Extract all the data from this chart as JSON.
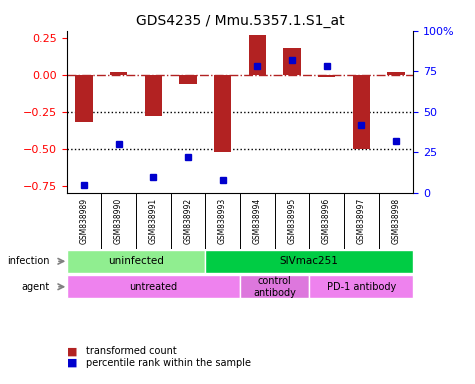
{
  "title": "GDS4235 / Mmu.5357.1.S1_at",
  "samples": [
    "GSM838989",
    "GSM838990",
    "GSM838991",
    "GSM838992",
    "GSM838993",
    "GSM838994",
    "GSM838995",
    "GSM838996",
    "GSM838997",
    "GSM838998"
  ],
  "transformed_count": [
    -0.32,
    0.02,
    -0.28,
    -0.06,
    -0.52,
    0.27,
    0.18,
    -0.015,
    -0.5,
    0.02
  ],
  "percentile_rank": [
    5,
    30,
    10,
    22,
    8,
    78,
    82,
    78,
    42,
    32
  ],
  "ylim_left": [
    -0.8,
    0.3
  ],
  "ylim_right": [
    0,
    100
  ],
  "yticks_left": [
    -0.75,
    -0.5,
    -0.25,
    0,
    0.25
  ],
  "yticks_right": [
    0,
    25,
    50,
    75,
    100
  ],
  "hline_y": 0,
  "dotted_lines": [
    -0.25,
    -0.5
  ],
  "bar_color": "#B22222",
  "dot_color": "#0000CD",
  "infection_groups": [
    {
      "label": "uninfected",
      "start": 0,
      "end": 4,
      "color": "#90EE90"
    },
    {
      "label": "SIVmac251",
      "start": 4,
      "end": 10,
      "color": "#00CC44"
    }
  ],
  "agent_groups": [
    {
      "label": "untreated",
      "start": 0,
      "end": 5,
      "color": "#EE82EE"
    },
    {
      "label": "control\nantibody",
      "start": 5,
      "end": 7,
      "color": "#DD77DD"
    },
    {
      "label": "PD-1 antibody",
      "start": 7,
      "end": 10,
      "color": "#EE82EE"
    }
  ],
  "legend_items": [
    {
      "label": "transformed count",
      "color": "#B22222"
    },
    {
      "label": "percentile rank within the sample",
      "color": "#0000CD"
    }
  ],
  "infection_label": "infection",
  "agent_label": "agent"
}
